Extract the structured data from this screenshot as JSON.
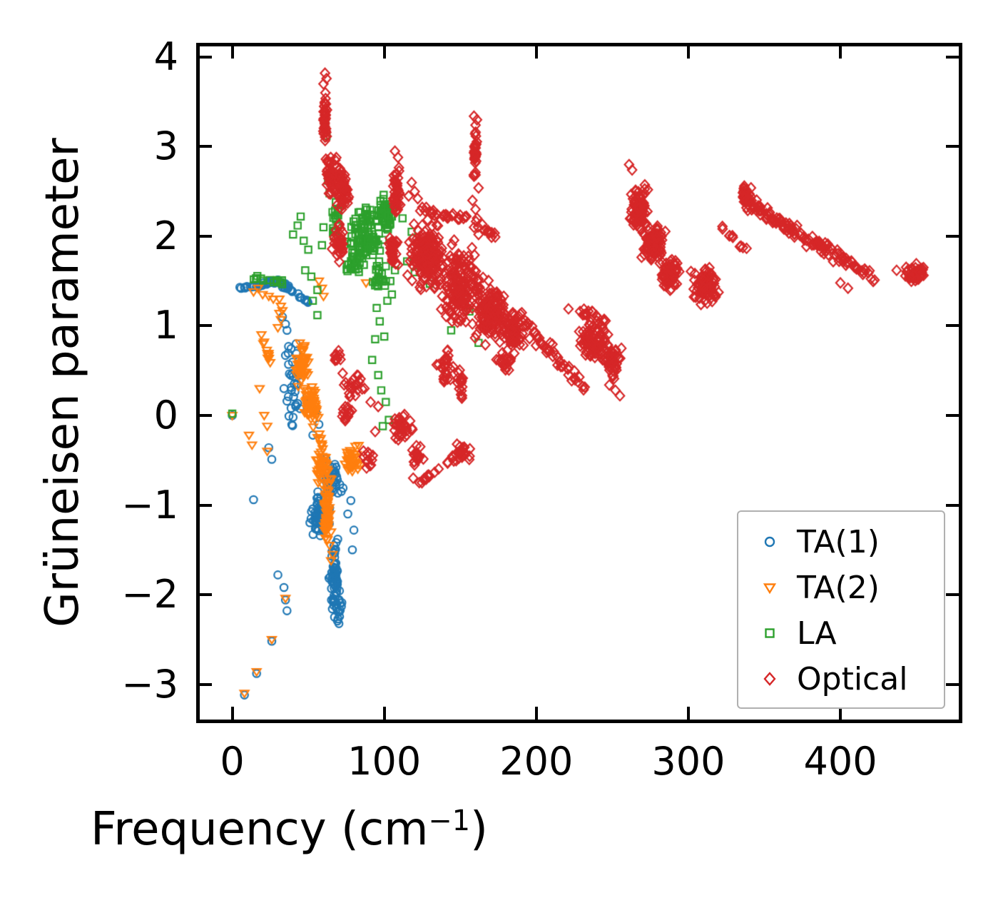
{
  "figure": {
    "xlabel_prefix": "Frequency (cm",
    "xlabel_sup": "−1",
    "xlabel_suffix": ")",
    "ylabel": "Grüneisen parameter"
  },
  "legend": {
    "items": [
      {
        "label": "TA(1)",
        "marker": "circle",
        "color": "#1f77b4"
      },
      {
        "label": "TA(2)",
        "marker": "triangle",
        "color": "#ff7f0e"
      },
      {
        "label": "LA",
        "marker": "square",
        "color": "#2ca02c"
      },
      {
        "label": "Optical",
        "marker": "diamond",
        "color": "#d62728"
      }
    ],
    "position": "lower right"
  },
  "chart_data": {
    "type": "scatter",
    "title": "",
    "xlabel": "Frequency (cm^-1)",
    "ylabel": "Grüneisen parameter",
    "xlim": [
      -22.8,
      478.8
    ],
    "ylim": [
      -3.41,
      4.143
    ],
    "grid": false,
    "x_tick_values": [
      0,
      100,
      200,
      300,
      400
    ],
    "x_tick_labels": [
      "0",
      "100",
      "200",
      "300",
      "400"
    ],
    "y_tick_values": [
      4,
      3,
      2,
      1,
      0,
      -1,
      -2,
      -3
    ],
    "y_tick_labels": [
      "4",
      "3",
      "2",
      "1",
      "0",
      "−1",
      "−2",
      "−3"
    ],
    "series": [
      {
        "name": "TA(1)",
        "marker": "circle",
        "color": "#1f77b4",
        "points": [
          [
            0,
            0.0
          ],
          [
            5,
            1.43
          ],
          [
            8,
            -3.12
          ],
          [
            16,
            -2.88
          ],
          [
            26,
            -2.52
          ],
          [
            35,
            -2.06
          ],
          [
            30,
            -1.78
          ],
          [
            34,
            -1.92
          ],
          [
            36,
            -2.18
          ],
          [
            14,
            -0.94
          ],
          [
            24,
            -0.36
          ],
          [
            26,
            -0.49
          ],
          [
            33,
            1.1
          ],
          [
            35,
            1.02
          ],
          [
            36,
            0.95
          ],
          [
            37,
            0.77
          ],
          [
            35,
            0.67
          ],
          [
            37,
            0.57
          ],
          [
            34,
            0.3
          ],
          [
            36,
            0.16
          ],
          [
            40,
            -0.02
          ],
          [
            49,
            0.21
          ],
          [
            52,
            0.1
          ],
          [
            44,
            0.45
          ],
          [
            47,
            0.64
          ],
          [
            42,
            0.8
          ],
          [
            55,
            0.05
          ],
          [
            57,
            -0.1
          ],
          [
            53,
            -0.22
          ],
          [
            78,
            -0.95
          ],
          [
            80,
            -1.28
          ],
          [
            79,
            -1.5
          ],
          [
            76,
            -1.1
          ]
        ],
        "bands": [
          [
            6,
            1.42,
            30,
            1.5,
            28,
            1.5,
            0.03
          ],
          [
            30,
            1.5,
            50,
            1.27,
            32,
            1.5,
            0.04
          ]
        ],
        "clusters": [
          [
            40,
            0.35,
            7,
            0.65,
            26
          ],
          [
            57,
            -1.12,
            9,
            0.38,
            60
          ],
          [
            67,
            -1.8,
            4,
            0.5,
            65
          ],
          [
            66,
            -0.72,
            9,
            0.28,
            42
          ],
          [
            70,
            -2.15,
            3,
            0.2,
            18
          ]
        ]
      },
      {
        "name": "TA(2)",
        "marker": "triangle",
        "color": "#ff7f0e",
        "points": [
          [
            0,
            0.0
          ],
          [
            8,
            -3.1
          ],
          [
            16,
            -2.86
          ],
          [
            26,
            -2.5
          ],
          [
            35,
            -2.04
          ],
          [
            23,
            -0.4
          ],
          [
            11,
            -0.22
          ],
          [
            13,
            -0.33
          ],
          [
            21,
            0.0
          ],
          [
            23,
            -0.12
          ],
          [
            18,
            0.3
          ],
          [
            57,
            1.5
          ],
          [
            59,
            1.42
          ],
          [
            60,
            1.33
          ],
          [
            88,
            1.48
          ],
          [
            14,
            1.38
          ],
          [
            17,
            1.42
          ],
          [
            20,
            1.35
          ],
          [
            24,
            1.33
          ],
          [
            27,
            1.3
          ],
          [
            31,
            1.3
          ],
          [
            32,
            1.22
          ],
          [
            31,
            1.14
          ],
          [
            32,
            1.07
          ],
          [
            33,
            1.17
          ],
          [
            30,
            0.98
          ],
          [
            65,
            -1.3
          ],
          [
            64,
            -1.45
          ],
          [
            66,
            -1.55
          ],
          [
            65,
            -1.62
          ]
        ],
        "bands": [
          [
            19,
            0.92,
            25,
            0.58,
            12,
            1.5,
            0.04
          ],
          [
            57,
            -0.2,
            64,
            -0.72,
            24,
            2,
            0.08
          ]
        ],
        "clusters": [
          [
            46,
            0.55,
            6,
            0.33,
            48
          ],
          [
            52,
            0.12,
            7,
            0.3,
            52
          ],
          [
            62.5,
            -1.05,
            2.5,
            0.5,
            60
          ],
          [
            58,
            -0.6,
            4,
            0.25,
            26
          ],
          [
            79,
            -0.48,
            7,
            0.18,
            38
          ]
        ]
      },
      {
        "name": "LA",
        "marker": "square",
        "color": "#2ca02c",
        "points": [
          [
            0,
            0.02
          ],
          [
            61,
            3.25
          ],
          [
            62,
            3.12
          ],
          [
            63,
            2.62
          ],
          [
            64,
            2.48
          ],
          [
            40,
            2.02
          ],
          [
            43,
            2.12
          ],
          [
            45,
            2.22
          ],
          [
            47,
            1.95
          ],
          [
            50,
            1.85
          ],
          [
            48,
            1.62
          ],
          [
            52,
            1.55
          ],
          [
            56,
            1.4
          ],
          [
            53,
            1.28
          ],
          [
            56,
            1.12
          ],
          [
            59,
            1.9
          ],
          [
            60,
            2.1
          ],
          [
            130,
            1.47
          ],
          [
            148,
            1.35
          ],
          [
            156,
            1.16
          ],
          [
            144,
            0.95
          ],
          [
            162,
            0.81
          ],
          [
            120,
            1.6
          ],
          [
            115,
            1.72
          ],
          [
            112,
            2.2
          ],
          [
            118,
            2.05
          ],
          [
            95,
            1.2
          ],
          [
            97,
            1.05
          ],
          [
            100,
            0.88
          ],
          [
            94,
            0.85
          ],
          [
            92,
            0.62
          ],
          [
            96,
            0.45
          ],
          [
            98,
            0.28
          ],
          [
            101,
            0.15
          ],
          [
            103,
            -0.05
          ],
          [
            99,
            -0.12
          ],
          [
            105,
            1.35
          ],
          [
            104,
            1.5
          ],
          [
            107,
            1.62
          ],
          [
            102,
            1.28
          ]
        ],
        "bands": [
          [
            14,
            1.55,
            34,
            1.48,
            13,
            1.5,
            0.05
          ]
        ],
        "clusters": [
          [
            88,
            2.0,
            15,
            0.42,
            95
          ],
          [
            100,
            2.25,
            7,
            0.25,
            50
          ],
          [
            80,
            1.7,
            8,
            0.22,
            28
          ],
          [
            68,
            2.2,
            4,
            0.35,
            18
          ],
          [
            97,
            1.55,
            6,
            0.18,
            20
          ]
        ]
      },
      {
        "name": "Optical",
        "marker": "diamond",
        "color": "#d62728",
        "points": [
          [
            61,
            3.82
          ],
          [
            62,
            3.76
          ],
          [
            60,
            3.7
          ],
          [
            159,
            3.34
          ],
          [
            161,
            3.3
          ],
          [
            160,
            3.24
          ],
          [
            159,
            2.67
          ],
          [
            162,
            2.54
          ],
          [
            107,
            2.95
          ],
          [
            109,
            2.88
          ],
          [
            261,
            2.8
          ],
          [
            263,
            2.74
          ],
          [
            252,
            0.28
          ],
          [
            255,
            0.22
          ],
          [
            248,
            0.34
          ],
          [
            123,
            -0.75
          ],
          [
            126,
            -0.72
          ],
          [
            119,
            -0.7
          ],
          [
            400,
            1.48
          ],
          [
            405,
            1.42
          ],
          [
            437,
            1.62
          ],
          [
            96,
            0.1
          ],
          [
            94,
            -0.18
          ],
          [
            91,
            0.15
          ],
          [
            158,
            2.4
          ],
          [
            160,
            2.3
          ],
          [
            161,
            2.2
          ],
          [
            159,
            2.1
          ],
          [
            162,
            2.02
          ],
          [
            118,
            2.6
          ],
          [
            120,
            2.5
          ],
          [
            122,
            2.42
          ],
          [
            116,
            2.45
          ]
        ],
        "bands": [
          [
            196,
            0.95,
            232,
            0.3,
            45,
            4,
            0.12
          ],
          [
            220,
            1.2,
            247,
            1.08,
            16,
            3,
            0.06
          ],
          [
            123,
            2.3,
            158,
            2.18,
            28,
            3,
            0.08
          ],
          [
            150,
            2.3,
            176,
            1.95,
            12,
            2,
            0.06
          ],
          [
            121,
            -0.78,
            146,
            -0.48,
            13,
            1,
            0.03
          ],
          [
            321,
            2.12,
            340,
            1.8,
            10,
            2,
            0.06
          ],
          [
            338,
            2.38,
            381,
            1.95,
            70,
            4,
            0.1
          ],
          [
            381,
            1.95,
            423,
            1.53,
            60,
            4,
            0.1
          ],
          [
            66,
            2.9,
            78,
            2.35,
            25,
            2,
            0.12
          ]
        ],
        "clusters": [
          [
            61,
            3.3,
            1.8,
            0.42,
            35
          ],
          [
            64,
            2.7,
            3,
            0.38,
            40
          ],
          [
            72,
            2.5,
            5,
            0.32,
            40
          ],
          [
            70,
            1.95,
            6,
            0.3,
            35
          ],
          [
            80,
            0.35,
            10,
            0.22,
            22
          ],
          [
            76,
            0.02,
            6,
            0.16,
            14
          ],
          [
            69,
            0.65,
            4,
            0.12,
            10
          ],
          [
            108,
            2.45,
            3,
            0.42,
            45
          ],
          [
            106,
            1.85,
            4,
            0.3,
            35
          ],
          [
            128,
            1.8,
            14,
            0.45,
            170
          ],
          [
            150,
            1.45,
            17,
            0.55,
            180
          ],
          [
            170,
            1.15,
            14,
            0.45,
            130
          ],
          [
            185,
            0.95,
            11,
            0.33,
            80
          ],
          [
            140,
            0.55,
            7,
            0.3,
            28
          ],
          [
            180,
            0.62,
            8,
            0.22,
            22
          ],
          [
            150,
            0.35,
            4,
            0.22,
            18
          ],
          [
            160,
            2.9,
            1.5,
            0.33,
            28
          ],
          [
            112,
            -0.15,
            9,
            0.25,
            32
          ],
          [
            122,
            -0.45,
            6,
            0.15,
            16
          ],
          [
            150,
            -0.42,
            9,
            0.16,
            26
          ],
          [
            90,
            -0.5,
            5,
            0.15,
            12
          ],
          [
            237,
            0.85,
            12,
            0.3,
            90
          ],
          [
            250,
            0.6,
            8,
            0.24,
            45
          ],
          [
            267,
            2.3,
            8,
            0.33,
            80
          ],
          [
            277,
            1.92,
            10,
            0.33,
            90
          ],
          [
            288,
            1.58,
            8,
            0.28,
            60
          ],
          [
            312,
            1.45,
            12,
            0.26,
            90
          ],
          [
            338,
            2.45,
            5,
            0.17,
            35
          ],
          [
            450,
            1.58,
            9,
            0.13,
            50
          ]
        ]
      }
    ]
  }
}
